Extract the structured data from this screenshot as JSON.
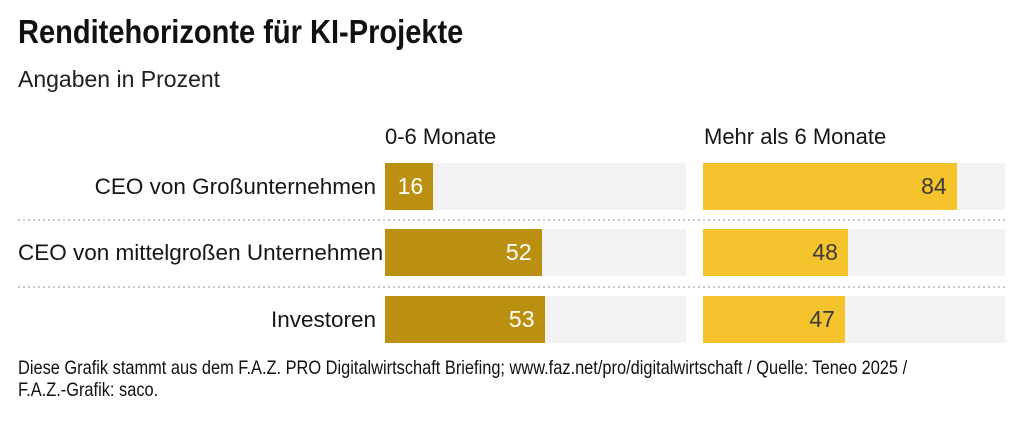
{
  "chart_data": {
    "type": "bar",
    "orientation": "horizontal",
    "title": "Renditehorizonte für KI-Projekte",
    "subtitle": "Angaben in Prozent",
    "group_headers": [
      "0-6 Monate",
      "Mehr als 6 Monate"
    ],
    "categories": [
      "CEO von Großunternehmen",
      "CEO von mittelgroßen Unternehmen",
      "Investoren"
    ],
    "series": [
      {
        "name": "0-6 Monate",
        "values": [
          16,
          52,
          53
        ],
        "color": "#BB8F10",
        "value_label_color": "#FFFFFF"
      },
      {
        "name": "Mehr als 6 Monate",
        "values": [
          84,
          48,
          47
        ],
        "color": "#F5C32B",
        "value_label_color": "#3B3B3B"
      }
    ],
    "xlim": [
      0,
      100
    ],
    "unit": "Prozent",
    "track_color": "#F2F2F2",
    "separator_color": "#C9C9C9",
    "grid": "off",
    "legend": "none"
  },
  "footer": {
    "line1": "Diese Grafik stammt aus dem F.A.Z. PRO Digitalwirtschaft Briefing; www.faz.net/pro/digitalwirtschaft / Quelle: Teneo 2025 /",
    "line2": "F.A.Z.-Grafik: saco."
  }
}
